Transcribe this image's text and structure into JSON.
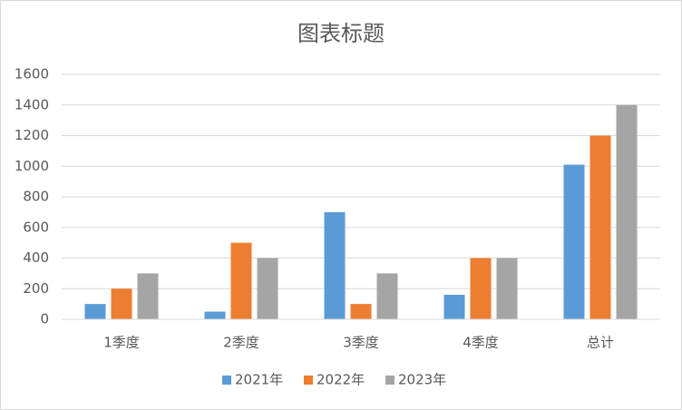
{
  "chart_data": {
    "type": "bar",
    "title": "图表标题",
    "categories": [
      "1季度",
      "2季度",
      "3季度",
      "4季度",
      "总计"
    ],
    "series": [
      {
        "name": "2021年",
        "color": "#5b9bd5",
        "values": [
          100,
          50,
          700,
          160,
          1010
        ]
      },
      {
        "name": "2022年",
        "color": "#ed7d31",
        "values": [
          200,
          500,
          100,
          400,
          1200
        ]
      },
      {
        "name": "2023年",
        "color": "#a5a5a5",
        "values": [
          300,
          400,
          300,
          400,
          1400
        ]
      }
    ],
    "ylim": [
      0,
      1600
    ],
    "yticks": [
      0,
      200,
      400,
      600,
      800,
      1000,
      1200,
      1400,
      1600
    ],
    "grid": true,
    "legend": "bottom"
  }
}
